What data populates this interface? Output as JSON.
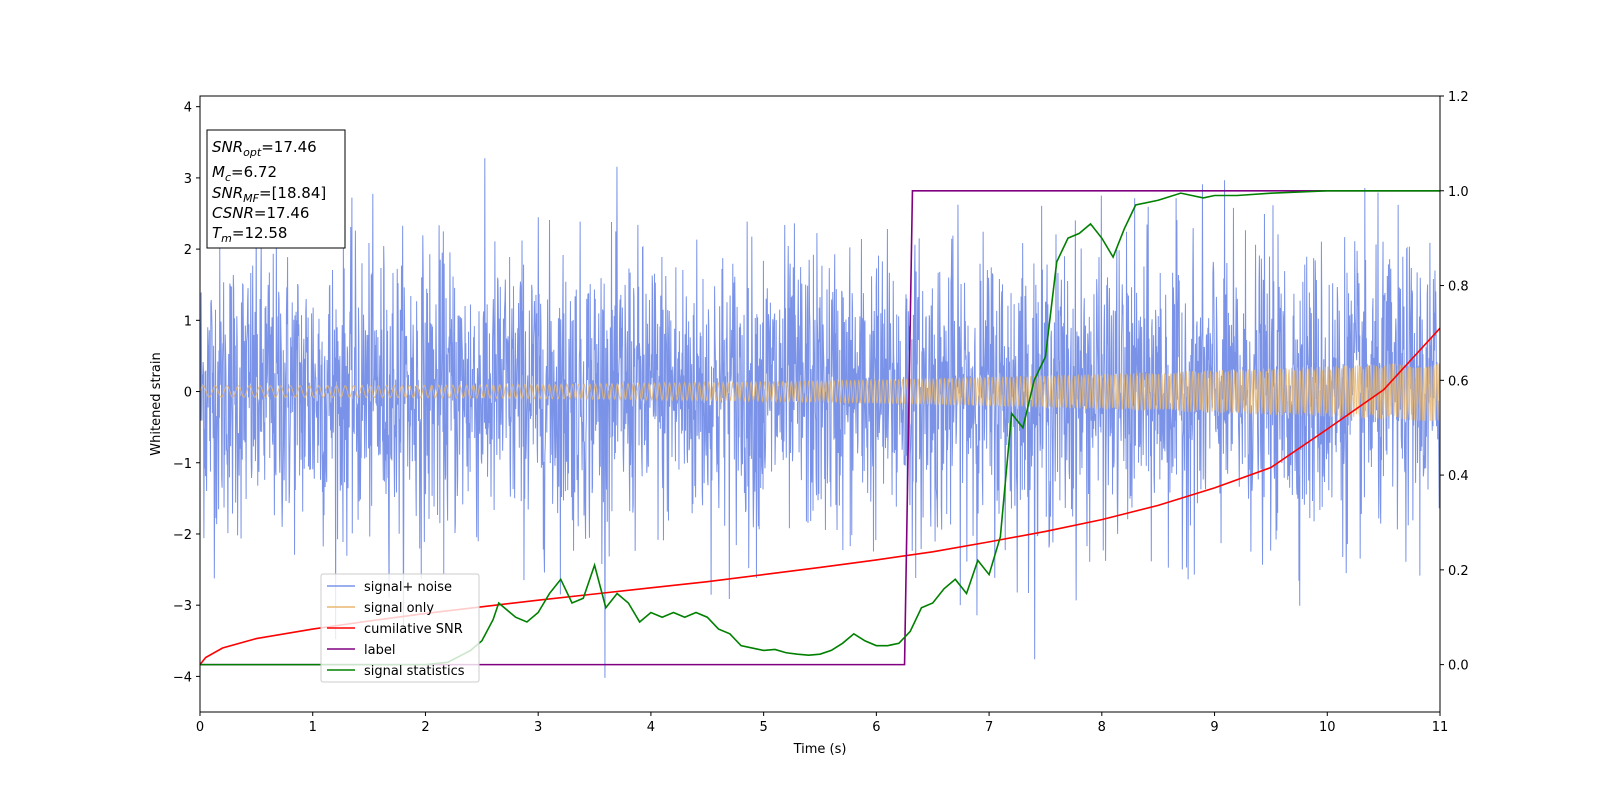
{
  "chart_data": {
    "type": "line",
    "title": "",
    "xlabel": "Time (s)",
    "ylabel": "Whitened strain",
    "xlim": [
      0,
      11
    ],
    "ylim": [
      -4.5,
      4.15
    ],
    "y2lim": [
      -0.1,
      1.2
    ],
    "x_ticks": [
      0,
      1,
      2,
      3,
      4,
      5,
      6,
      7,
      8,
      9,
      10,
      11
    ],
    "y_ticks": [
      -4,
      -3,
      -2,
      -1,
      0,
      1,
      2,
      3,
      4
    ],
    "y_tick_labels": [
      "−4",
      "−3",
      "−2",
      "−1",
      "0",
      "1",
      "2",
      "3",
      "4"
    ],
    "y2_ticks": [
      0.0,
      0.2,
      0.4,
      0.6,
      0.8,
      1.0,
      1.2
    ],
    "y2_tick_labels": [
      "0.0",
      "0.2",
      "0.4",
      "0.6",
      "0.8",
      "1.0",
      "1.2"
    ],
    "legend_position": "lower-left",
    "grid": false,
    "annotation": [
      {
        "sym": "SNR",
        "sub": "opt",
        "val": "=17.46"
      },
      {
        "sym": "M",
        "sub": "c",
        "val": "=6.72"
      },
      {
        "sym": "SNR",
        "sub": "MF",
        "val": "=[18.84]"
      },
      {
        "sym": "CSNR",
        "sub": "",
        "val": "=17.46"
      },
      {
        "sym": "T",
        "sub": "m",
        "val": "=12.58"
      }
    ],
    "series": [
      {
        "name": "signal+ noise",
        "axis": "left",
        "color": "#7a93e8",
        "kind": "noise",
        "noise_sigma": 1.0,
        "noise_range": [
          -4.2,
          3.8
        ]
      },
      {
        "name": "signal only",
        "axis": "left",
        "color": "#e8b771",
        "kind": "chirp",
        "amplitude_start": 0.08,
        "amplitude_end": 0.42
      },
      {
        "name": "cumilative SNR",
        "axis": "right",
        "color": "#ff0000",
        "kind": "line",
        "x": [
          0,
          0.05,
          0.2,
          0.5,
          1,
          1.5,
          2,
          2.5,
          3,
          3.5,
          4,
          4.5,
          5,
          5.5,
          6,
          6.5,
          7,
          7.5,
          8,
          8.5,
          9,
          9.5,
          10,
          10.5,
          11
        ],
        "y": [
          0.0,
          0.015,
          0.035,
          0.055,
          0.075,
          0.092,
          0.108,
          0.122,
          0.136,
          0.149,
          0.162,
          0.175,
          0.19,
          0.205,
          0.221,
          0.238,
          0.259,
          0.281,
          0.306,
          0.336,
          0.373,
          0.416,
          0.497,
          0.58,
          0.71
        ]
      },
      {
        "name": "label",
        "axis": "right",
        "color": "#800080",
        "kind": "line",
        "x": [
          0,
          6.25,
          6.32,
          11
        ],
        "y": [
          0.0,
          0.0,
          1.0,
          1.0
        ]
      },
      {
        "name": "signal statistics",
        "axis": "right",
        "color": "#008000",
        "kind": "line",
        "x": [
          0,
          0.5,
          1,
          1.5,
          2,
          2.2,
          2.4,
          2.5,
          2.6,
          2.65,
          2.7,
          2.8,
          2.9,
          3.0,
          3.1,
          3.2,
          3.3,
          3.4,
          3.5,
          3.6,
          3.7,
          3.8,
          3.9,
          4.0,
          4.1,
          4.2,
          4.3,
          4.4,
          4.5,
          4.6,
          4.7,
          4.8,
          4.9,
          5.0,
          5.1,
          5.2,
          5.3,
          5.4,
          5.5,
          5.6,
          5.7,
          5.8,
          5.9,
          6.0,
          6.1,
          6.2,
          6.3,
          6.4,
          6.5,
          6.6,
          6.7,
          6.8,
          6.9,
          7.0,
          7.1,
          7.2,
          7.3,
          7.4,
          7.5,
          7.6,
          7.7,
          7.8,
          7.9,
          8.0,
          8.1,
          8.2,
          8.3,
          8.5,
          8.7,
          8.9,
          9.0,
          9.2,
          9.5,
          10.0,
          11.0
        ],
        "y": [
          0.0,
          0.0,
          0.0,
          0.0,
          0.0,
          0.005,
          0.03,
          0.05,
          0.095,
          0.13,
          0.12,
          0.1,
          0.09,
          0.11,
          0.15,
          0.18,
          0.13,
          0.14,
          0.21,
          0.12,
          0.15,
          0.13,
          0.09,
          0.11,
          0.1,
          0.11,
          0.1,
          0.11,
          0.1,
          0.075,
          0.065,
          0.04,
          0.035,
          0.03,
          0.032,
          0.025,
          0.022,
          0.02,
          0.022,
          0.03,
          0.045,
          0.065,
          0.05,
          0.04,
          0.04,
          0.045,
          0.07,
          0.12,
          0.13,
          0.16,
          0.18,
          0.15,
          0.22,
          0.19,
          0.27,
          0.53,
          0.5,
          0.6,
          0.65,
          0.85,
          0.9,
          0.91,
          0.93,
          0.9,
          0.86,
          0.92,
          0.97,
          0.98,
          0.995,
          0.985,
          0.99,
          0.99,
          0.995,
          1.0,
          1.0
        ]
      }
    ]
  }
}
